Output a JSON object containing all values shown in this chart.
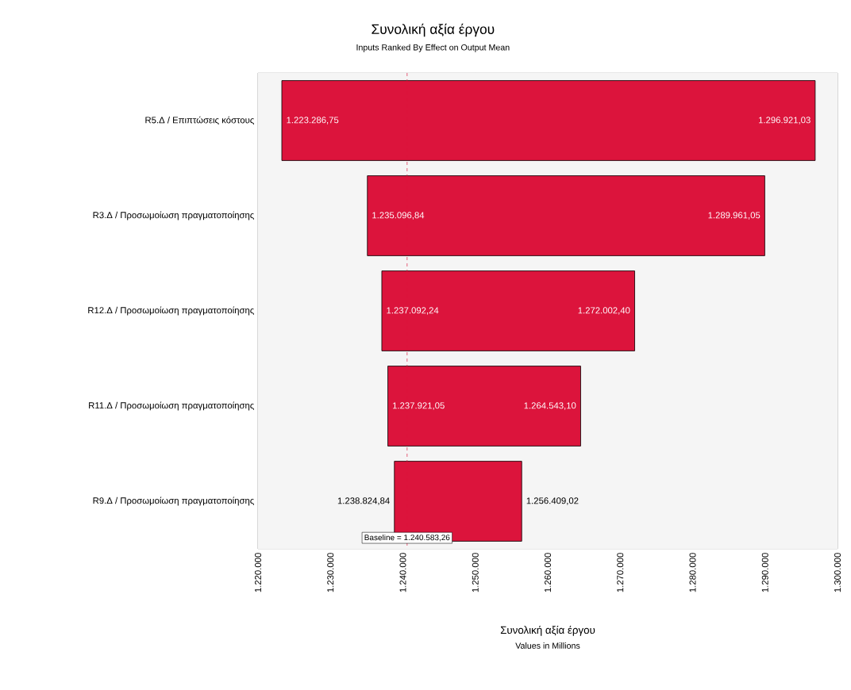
{
  "chart_data": {
    "type": "bar",
    "orientation": "horizontal",
    "title": "Συνολική αξία έργου",
    "subtitle": "Inputs Ranked By Effect on Output Mean",
    "xlabel": "Συνολική  αξία έργου",
    "categories": [
      "R5.Δ / Επιπτώσεις κόστους",
      "R3.Δ / Προσωμοίωση  πραγματοποίησης",
      "R12.Δ / Προσωμοίωση  πραγματοποίησης",
      "R11.Δ / Προσωμοίωση  πραγματοποίησης",
      "R9.Δ / Προσωμοίωση  πραγματοποίησης"
    ],
    "base": [
      1223286.75,
      1235096.84,
      1237092.24,
      1237921.05,
      1238824.84
    ],
    "values": [
      73634.28,
      54864.21,
      34910.16,
      26622.05,
      17584.18
    ],
    "color": "#dc143c",
    "xlim": [
      1220000,
      1300000
    ],
    "xticks": [
      {
        "value": 1220000,
        "label": "1.220.000"
      },
      {
        "value": 1230000,
        "label": "1.230.000"
      },
      {
        "value": 1240000,
        "label": "1.240.000"
      },
      {
        "value": 1250000,
        "label": "1.250.000"
      },
      {
        "value": 1260000,
        "label": "1.260.000"
      },
      {
        "value": 1270000,
        "label": "1.270.000"
      },
      {
        "value": 1280000,
        "label": "1.280.000"
      },
      {
        "value": 1290000,
        "label": "1.290.000"
      },
      {
        "value": 1300000,
        "label": "1.300.000"
      }
    ],
    "grid": true,
    "ref_lines": [
      {
        "axis": "x",
        "value": 1240583.26,
        "label": "Baseline = 1.240.583,26",
        "color": "#dc143c",
        "line_style": "dashed"
      }
    ],
    "annotations": [
      {
        "text": "1.223.286,75",
        "x": 1223286.75,
        "y": "R5.Δ / Επιπτώσεις κόστους"
      },
      {
        "text": "1.296.921,03",
        "x": 1296921.03,
        "y": "R5.Δ / Επιπτώσεις κόστους"
      },
      {
        "text": "1.235.096,84",
        "x": 1235096.84,
        "y": "R3.Δ / Προσωμοίωση  πραγματοποίησης"
      },
      {
        "text": "1.289.961,05",
        "x": 1289961.05,
        "y": "R3.Δ / Προσωμοίωση  πραγματοποίησης"
      },
      {
        "text": "1.237.092,24",
        "x": 1237092.24,
        "y": "R12.Δ / Προσωμοίωση  πραγματοποίησης"
      },
      {
        "text": "1.272.002,40",
        "x": 1272002.4,
        "y": "R12.Δ / Προσωμοίωση  πραγματοποίησης"
      },
      {
        "text": "1.237.921,05",
        "x": 1237921.05,
        "y": "R11.Δ / Προσωμοίωση  πραγματοποίησης"
      },
      {
        "text": "1.264.543,10",
        "x": 1264543.1,
        "y": "R11.Δ / Προσωμοίωση  πραγματοποίησης"
      },
      {
        "text": "1.238.824,84",
        "x": 1238824.84,
        "y": "R9.Δ / Προσωμοίωση  πραγματοποίησης"
      },
      {
        "text": "1.256.409,02",
        "x": 1256409.02,
        "y": "R9.Δ / Προσωμοίωση  πραγματοποίησης"
      },
      "Values in Millions"
    ]
  }
}
